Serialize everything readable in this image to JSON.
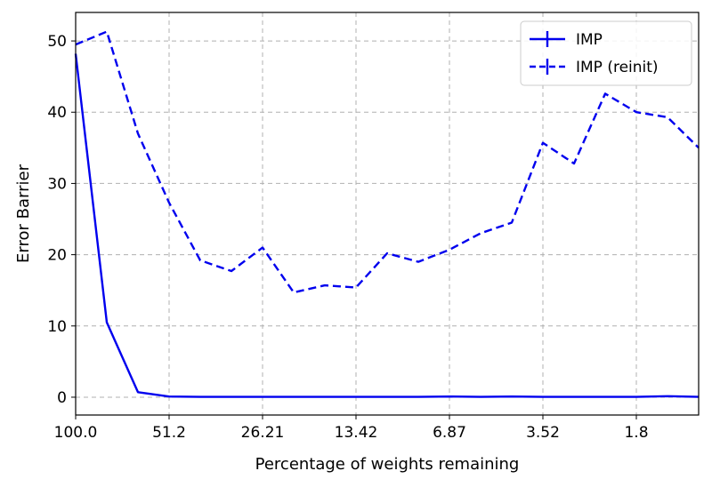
{
  "chart_data": {
    "type": "line",
    "xlabel": "Percentage of weights remaining",
    "ylabel": "Error Barrier",
    "x_tick_labels": [
      "100.0",
      "51.2",
      "26.21",
      "13.42",
      "6.87",
      "3.52",
      "1.8"
    ],
    "x_tick_index": [
      0,
      3,
      6,
      9,
      12,
      15,
      18
    ],
    "xlim": [
      0,
      20
    ],
    "ylim": [
      -2.5,
      54
    ],
    "y_ticks": [
      0,
      10,
      20,
      30,
      40,
      50
    ],
    "grid": true,
    "legend_position": "top-right",
    "x": [
      0,
      1,
      2,
      3,
      4,
      5,
      6,
      7,
      8,
      9,
      10,
      11,
      12,
      13,
      14,
      15,
      16,
      17,
      18,
      19,
      20
    ],
    "series": [
      {
        "name": "IMP",
        "style": "solid",
        "color": "#0000ee",
        "values": [
          48.2,
          10.5,
          0.7,
          0.1,
          0.05,
          0.05,
          0.05,
          0.05,
          0.05,
          0.05,
          0.05,
          0.05,
          0.1,
          0.05,
          0.1,
          0.05,
          0.05,
          0.05,
          0.05,
          0.15,
          0.05
        ]
      },
      {
        "name": "IMP (reinit)",
        "style": "dashed",
        "color": "#0000ee",
        "values": [
          49.5,
          51.3,
          37.0,
          27.3,
          19.2,
          17.7,
          21.0,
          14.7,
          15.7,
          15.4,
          20.2,
          19.0,
          20.7,
          23.0,
          24.5,
          35.7,
          32.8,
          42.6,
          40.0,
          39.3,
          35.0
        ]
      }
    ]
  }
}
